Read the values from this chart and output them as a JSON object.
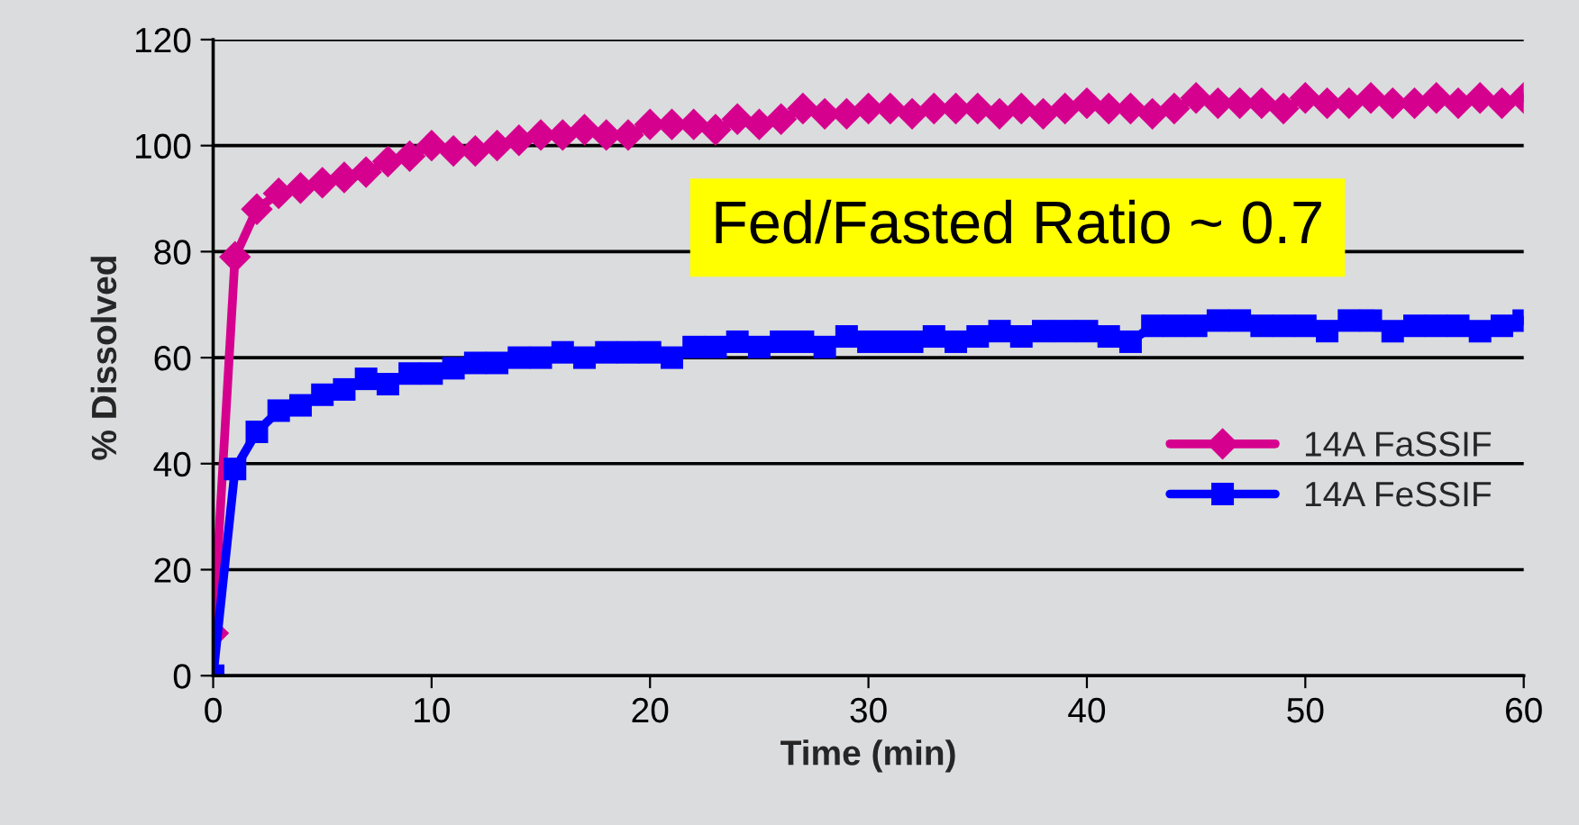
{
  "chart_data": {
    "type": "line",
    "xlabel": "Time (min)",
    "ylabel": "% Dissolved",
    "x": [
      0,
      1,
      2,
      3,
      4,
      5,
      6,
      7,
      8,
      9,
      10,
      11,
      12,
      13,
      14,
      15,
      16,
      17,
      18,
      19,
      20,
      21,
      22,
      23,
      24,
      25,
      26,
      27,
      28,
      29,
      30,
      31,
      32,
      33,
      34,
      35,
      36,
      37,
      38,
      39,
      40,
      41,
      42,
      43,
      44,
      45,
      46,
      47,
      48,
      49,
      50,
      51,
      52,
      53,
      54,
      55,
      56,
      57,
      58,
      59,
      60
    ],
    "series": [
      {
        "name": "14A FaSSIF",
        "color": "#d6008f",
        "marker": "diamond",
        "values": [
          8,
          79,
          88,
          91,
          92,
          93,
          94,
          95,
          97,
          98,
          100,
          99,
          99,
          100,
          101,
          102,
          102,
          103,
          102,
          102,
          104,
          104,
          104,
          103,
          105,
          104,
          105,
          107,
          106,
          106,
          107,
          107,
          106,
          107,
          107,
          107,
          106,
          107,
          106,
          107,
          108,
          107,
          107,
          106,
          107,
          109,
          108,
          108,
          108,
          107,
          109,
          108,
          108,
          109,
          108,
          108,
          109,
          108,
          109,
          108,
          109
        ]
      },
      {
        "name": "14A FeSSIF",
        "color": "#0000ff",
        "marker": "square",
        "values": [
          0,
          39,
          46,
          50,
          51,
          53,
          54,
          56,
          55,
          57,
          57,
          58,
          59,
          59,
          60,
          60,
          61,
          60,
          61,
          61,
          61,
          60,
          62,
          62,
          63,
          62,
          63,
          63,
          62,
          64,
          63,
          63,
          63,
          64,
          63,
          64,
          65,
          64,
          65,
          65,
          65,
          64,
          63,
          66,
          66,
          66,
          67,
          67,
          66,
          66,
          66,
          65,
          67,
          67,
          65,
          66,
          66,
          66,
          65,
          66,
          67
        ]
      }
    ],
    "xlim": [
      0,
      60
    ],
    "xticks": [
      0,
      10,
      20,
      30,
      40,
      50,
      60
    ],
    "ylim": [
      0,
      120
    ],
    "yticks": [
      0,
      20,
      40,
      60,
      80,
      100,
      120
    ],
    "grid": "y",
    "legend": "center right",
    "line_style": "solid",
    "annotations": [
      "Fed/Fasted Ratio ~ 0.7"
    ]
  }
}
